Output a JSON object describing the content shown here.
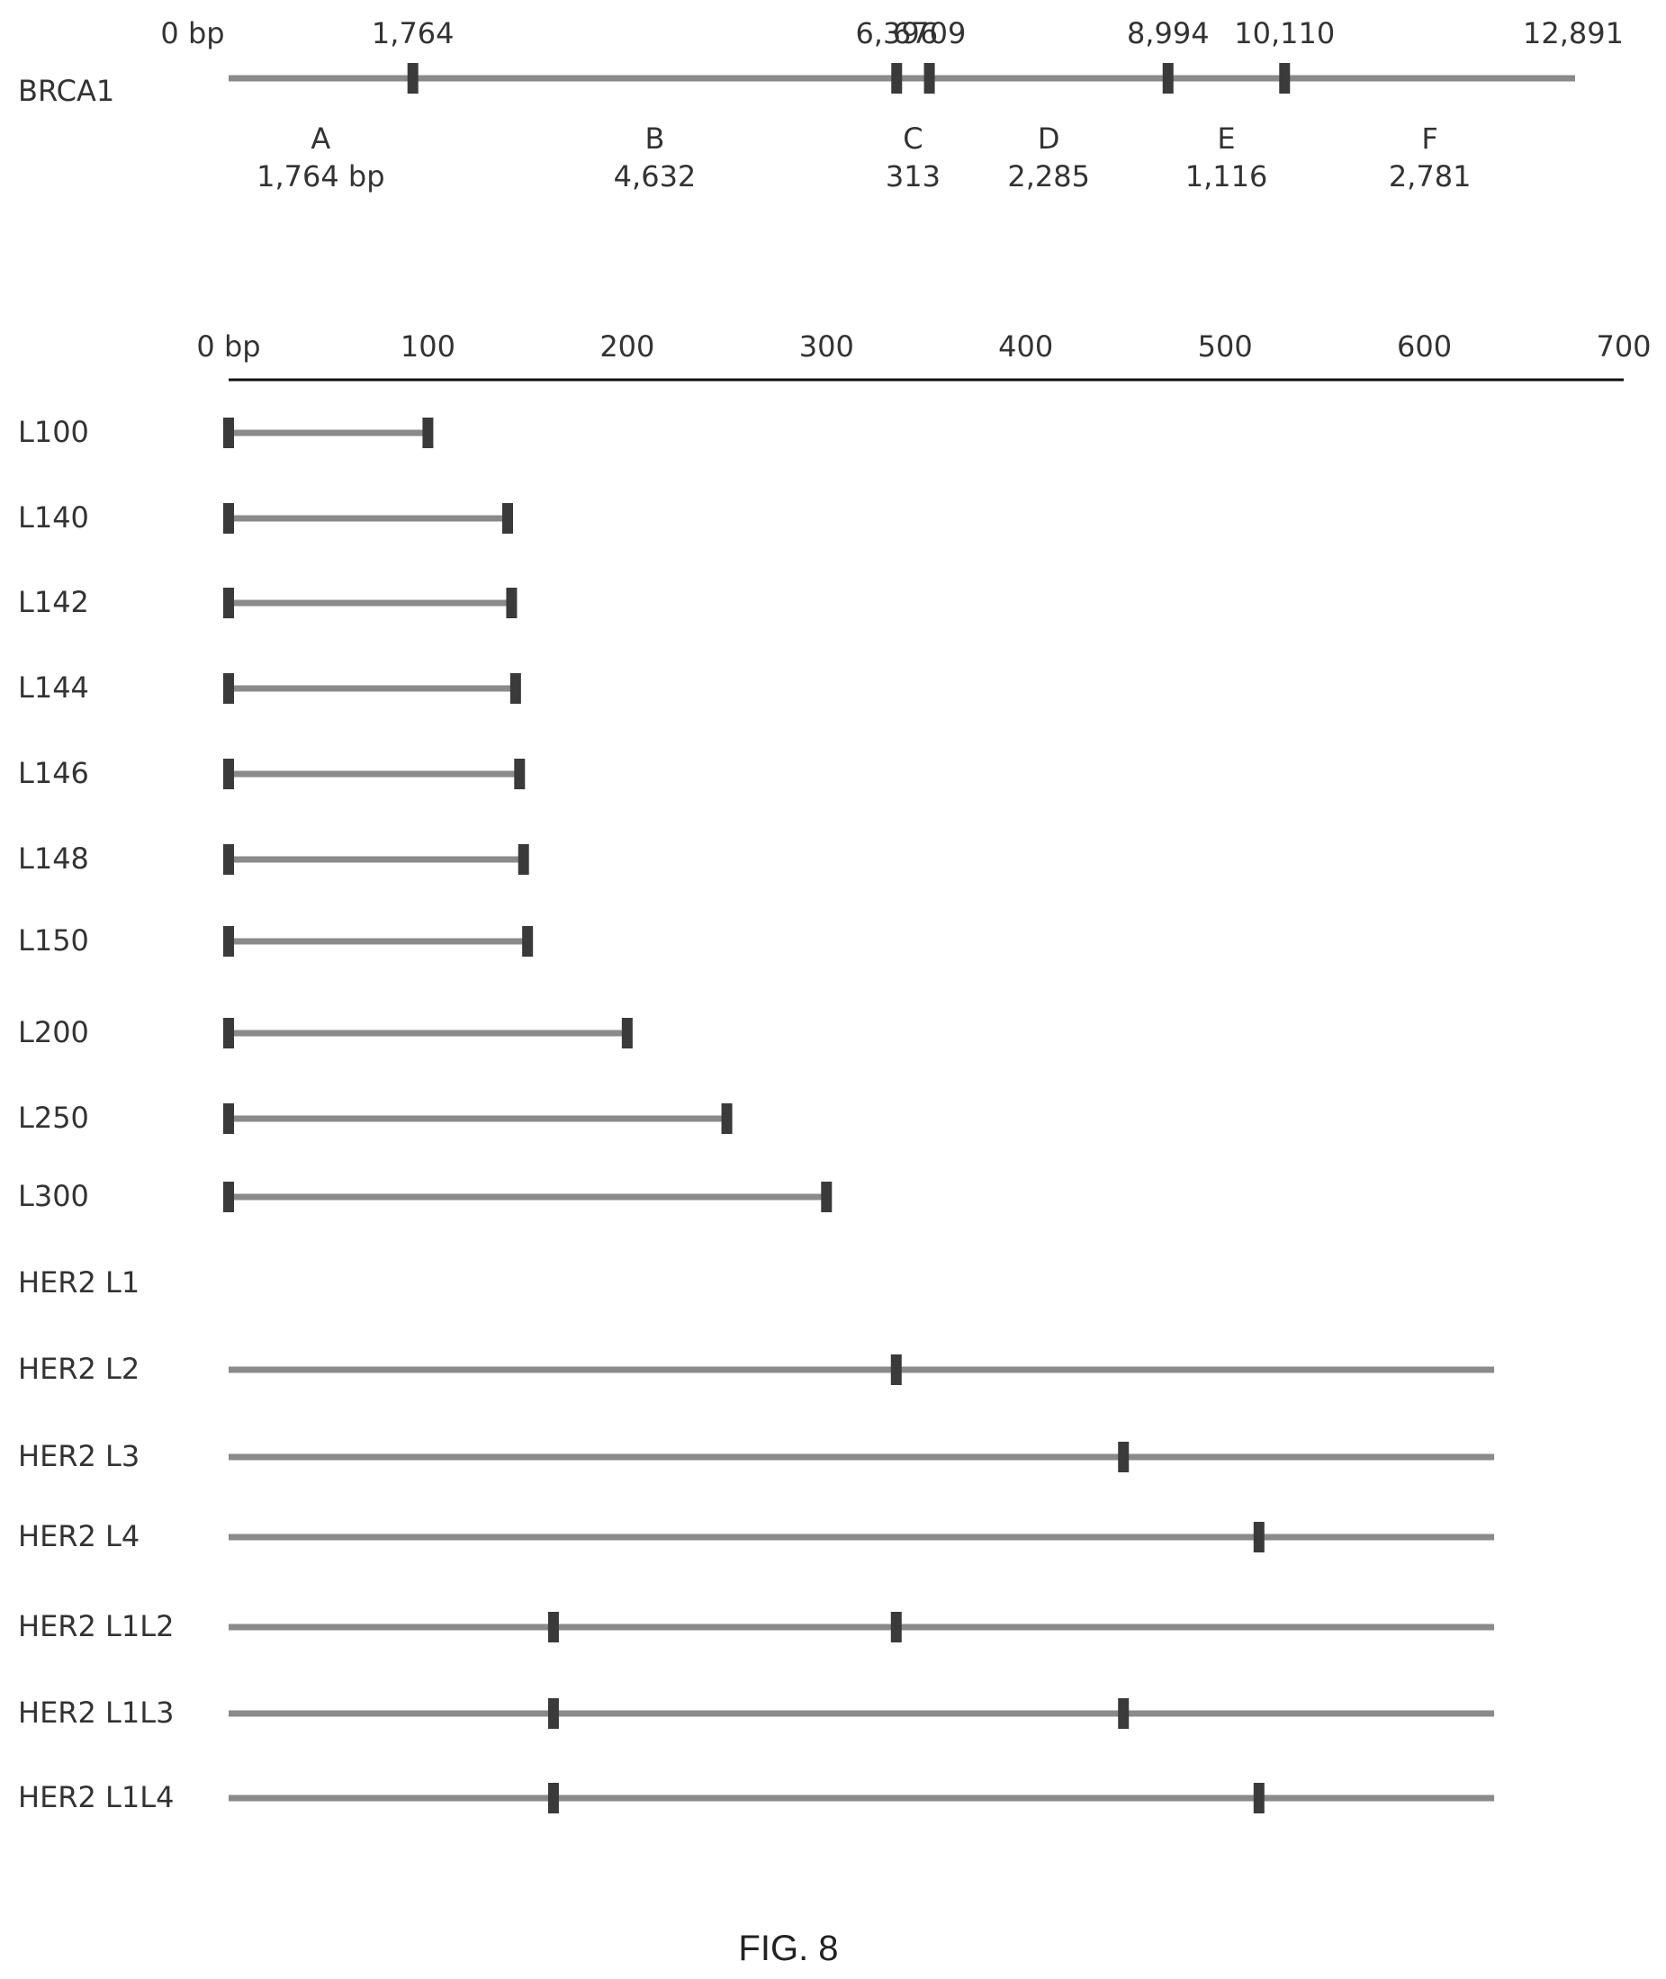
{
  "brca1": {
    "name": "BRCA1",
    "total_bp": 12891,
    "ticks": [
      {
        "value": 0,
        "label": "0 bp"
      },
      {
        "value": 1764,
        "label": "1,764"
      },
      {
        "value": 6396,
        "label": "6,396"
      },
      {
        "value": 6709,
        "label": "6709"
      },
      {
        "value": 8994,
        "label": "8,994"
      },
      {
        "value": 10110,
        "label": "10,110"
      },
      {
        "value": 12891,
        "label": "12,891"
      }
    ],
    "markers": [
      1764,
      6396,
      6709,
      8994,
      10110
    ],
    "segments": [
      {
        "letter": "A",
        "length": "1,764 bp",
        "start": 0,
        "end": 1764
      },
      {
        "letter": "B",
        "length": "4,632",
        "start": 1764,
        "end": 6396
      },
      {
        "letter": "C",
        "length": "313",
        "start": 6396,
        "end": 6709
      },
      {
        "letter": "D",
        "length": "2,285",
        "start": 6709,
        "end": 8994
      },
      {
        "letter": "E",
        "length": "1,116",
        "start": 8994,
        "end": 10110
      },
      {
        "letter": "F",
        "length": "2,781",
        "start": 10110,
        "end": 12891
      }
    ]
  },
  "scale": {
    "ticks": [
      {
        "value": 0,
        "label": "0 bp"
      },
      {
        "value": 100,
        "label": "100"
      },
      {
        "value": 200,
        "label": "200"
      },
      {
        "value": 300,
        "label": "300"
      },
      {
        "value": 400,
        "label": "400"
      },
      {
        "value": 500,
        "label": "500"
      },
      {
        "value": 600,
        "label": "600"
      },
      {
        "value": 700,
        "label": "700"
      }
    ]
  },
  "constructs": [
    {
      "name": "L100",
      "start": 0,
      "end": 100,
      "markers": [
        0,
        100
      ]
    },
    {
      "name": "L140",
      "start": 0,
      "end": 140,
      "markers": [
        0,
        140
      ]
    },
    {
      "name": "L142",
      "start": 0,
      "end": 142,
      "markers": [
        0,
        142
      ]
    },
    {
      "name": "L144",
      "start": 0,
      "end": 144,
      "markers": [
        0,
        144
      ]
    },
    {
      "name": "L146",
      "start": 0,
      "end": 146,
      "markers": [
        0,
        146
      ]
    },
    {
      "name": "L148",
      "start": 0,
      "end": 148,
      "markers": [
        0,
        148
      ]
    },
    {
      "name": "L150",
      "start": 0,
      "end": 150,
      "markers": [
        0,
        150
      ]
    },
    {
      "name": "L200",
      "start": 0,
      "end": 200,
      "markers": [
        0,
        200
      ]
    },
    {
      "name": "L250",
      "start": 0,
      "end": 250,
      "markers": [
        0,
        250
      ]
    },
    {
      "name": "L300",
      "start": 0,
      "end": 300,
      "markers": [
        0,
        300
      ]
    },
    {
      "name": "HER2 L1",
      "start": null,
      "end": null,
      "markers": []
    },
    {
      "name": "HER2 L2",
      "start": 0,
      "end": 635,
      "markers": [
        335
      ]
    },
    {
      "name": "HER2 L3",
      "start": 0,
      "end": 635,
      "markers": [
        449
      ]
    },
    {
      "name": "HER2 L4",
      "start": 0,
      "end": 635,
      "markers": [
        517
      ]
    },
    {
      "name": "HER2 L1L2",
      "start": 0,
      "end": 635,
      "markers": [
        163,
        335
      ]
    },
    {
      "name": "HER2 L1L3",
      "start": 0,
      "end": 635,
      "markers": [
        163,
        449
      ]
    },
    {
      "name": "HER2 L1L4",
      "start": 0,
      "end": 635,
      "markers": [
        163,
        517
      ]
    }
  ],
  "caption": "FIG. 8",
  "colors": {
    "line": "#8a8a8a",
    "marker": "#3a3a3a",
    "text": "#333333",
    "axis": "#111111"
  }
}
